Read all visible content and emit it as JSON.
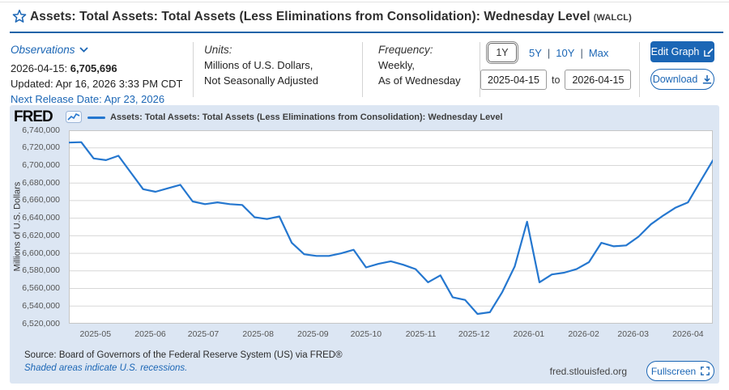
{
  "page": {
    "title": "Assets: Total Assets: Total Assets (Less Eliminations from Consolidation): Wednesday Level",
    "ticker": "(WALCL)"
  },
  "obs": {
    "heading": "Observations",
    "date_label": "2026-04-15:",
    "value": "6,705,696",
    "updated": "Updated: Apr 16, 2026 3:33 PM CDT",
    "next_release": "Next Release Date: Apr 23, 2026"
  },
  "units": {
    "label": "Units:",
    "line1": "Millions of U.S. Dollars,",
    "line2": "Not Seasonally Adjusted"
  },
  "frequency": {
    "label": "Frequency:",
    "line1": "Weekly,",
    "line2": "As of Wednesday"
  },
  "range": {
    "buttons": [
      "1Y",
      "5Y",
      "10Y",
      "Max"
    ],
    "selected": "1Y",
    "start_date": "2025-04-15",
    "to_label": "to",
    "end_date": "2026-04-15"
  },
  "actions": {
    "edit_graph": "Edit Graph",
    "download": "Download",
    "fullscreen": "Fullscreen"
  },
  "graph": {
    "logo": "FRED",
    "legend": "Assets: Total Assets: Total Assets (Less Eliminations from Consolidation): Wednesday Level",
    "source": "Source: Board of Governors of the Federal Reserve System (US) via FRED®",
    "recession_note": "Shaded areas indicate U.S. recessions.",
    "site": "fred.stlouisfed.org",
    "ylabel": "Millions of U.S. Dollars"
  },
  "colors": {
    "accent": "#1b66b5",
    "line": "#2577cf",
    "panel_bg": "#dce6f3",
    "grid": "#d7d7d7"
  },
  "chart_data": {
    "type": "line",
    "title": "Assets: Total Assets: Total Assets (Less Eliminations from Consolidation): Wednesday Level",
    "series_name": "WALCL",
    "xlabel": "",
    "ylabel": "Millions of U.S. Dollars",
    "ylim": [
      6520000,
      6740000
    ],
    "y_tick_step": 20000,
    "grid": "horizontal",
    "legend_position": "top-left",
    "x_ticks": [
      "2025-05",
      "2025-06",
      "2025-07",
      "2025-08",
      "2025-09",
      "2025-10",
      "2025-11",
      "2025-12",
      "2026-01",
      "2026-02",
      "2026-03",
      "2026-04"
    ],
    "dates": [
      "2025-04-16",
      "2025-04-23",
      "2025-04-30",
      "2025-05-07",
      "2025-05-14",
      "2025-05-21",
      "2025-05-28",
      "2025-06-04",
      "2025-06-11",
      "2025-06-18",
      "2025-06-25",
      "2025-07-02",
      "2025-07-09",
      "2025-07-16",
      "2025-07-23",
      "2025-07-30",
      "2025-08-06",
      "2025-08-13",
      "2025-08-20",
      "2025-08-27",
      "2025-09-03",
      "2025-09-10",
      "2025-09-17",
      "2025-09-24",
      "2025-10-01",
      "2025-10-08",
      "2025-10-15",
      "2025-10-22",
      "2025-10-29",
      "2025-11-05",
      "2025-11-12",
      "2025-11-19",
      "2025-11-26",
      "2025-12-03",
      "2025-12-10",
      "2025-12-17",
      "2025-12-24",
      "2025-12-31",
      "2026-01-07",
      "2026-01-14",
      "2026-01-21",
      "2026-01-28",
      "2026-02-04",
      "2026-02-11",
      "2026-02-18",
      "2026-02-25",
      "2026-03-04",
      "2026-03-11",
      "2026-03-18",
      "2026-03-25",
      "2026-04-01",
      "2026-04-08",
      "2026-04-15"
    ],
    "values": [
      6726000,
      6726500,
      6708000,
      6706000,
      6711000,
      6692000,
      6673000,
      6670000,
      6674000,
      6678000,
      6659000,
      6656000,
      6658000,
      6656000,
      6655000,
      6641000,
      6639000,
      6642000,
      6612000,
      6599000,
      6597000,
      6597000,
      6600000,
      6604000,
      6584000,
      6588000,
      6591000,
      6587000,
      6582000,
      6567000,
      6575000,
      6550000,
      6547000,
      6531000,
      6533000,
      6556000,
      6585000,
      6636000,
      6567000,
      6576000,
      6578000,
      6582000,
      6590000,
      6612000,
      6608000,
      6609000,
      6619000,
      6633000,
      6643000,
      6652000,
      6658000,
      6682000,
      6705696
    ]
  }
}
